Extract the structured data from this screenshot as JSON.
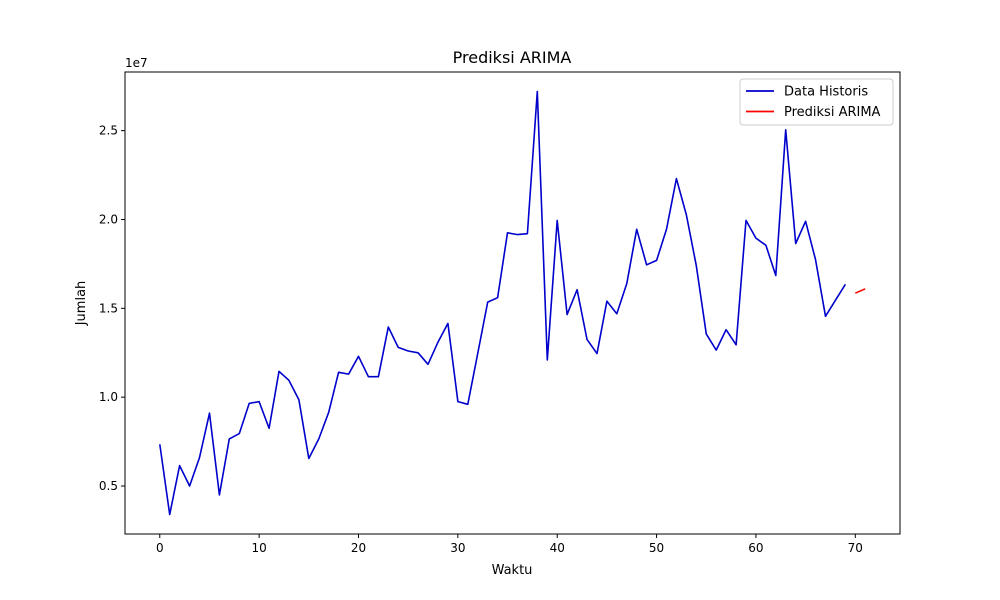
{
  "chart_data": {
    "type": "line",
    "title": "Prediksi ARIMA",
    "xlabel": "Waktu",
    "ylabel": "Jumlah",
    "y_offset_text": "1e7",
    "y_scale": 10000000,
    "xlim": [
      -3.5,
      74.5
    ],
    "ylim": [
      2300000,
      28300000
    ],
    "x_ticks": [
      0,
      10,
      20,
      30,
      40,
      50,
      60,
      70
    ],
    "x_tick_labels": [
      "0",
      "10",
      "20",
      "30",
      "40",
      "50",
      "60",
      "70"
    ],
    "y_ticks": [
      5000000,
      10000000,
      15000000,
      20000000,
      25000000
    ],
    "y_tick_labels": [
      "0.5",
      "1.0",
      "1.5",
      "2.0",
      "2.5"
    ],
    "legend_position": "top-right",
    "series": [
      {
        "name": "Data Historis",
        "color": "#0000cc",
        "x": [
          0,
          1,
          2,
          3,
          4,
          5,
          6,
          7,
          8,
          9,
          10,
          11,
          12,
          13,
          14,
          15,
          16,
          17,
          18,
          19,
          20,
          21,
          22,
          23,
          24,
          25,
          26,
          27,
          28,
          29,
          30,
          31,
          32,
          33,
          34,
          35,
          36,
          37,
          38,
          39,
          40,
          41,
          42,
          43,
          44,
          45,
          46,
          47,
          48,
          49,
          50,
          51,
          52,
          53,
          54,
          55,
          56,
          57,
          58,
          59,
          60,
          61,
          62,
          63,
          64,
          65,
          66,
          67,
          68,
          69
        ],
        "values": [
          7350000,
          3400000,
          6150000,
          5000000,
          6600000,
          9100000,
          4500000,
          7650000,
          7950000,
          9650000,
          9750000,
          8250000,
          11450000,
          10950000,
          9850000,
          6550000,
          7650000,
          9150000,
          11400000,
          11300000,
          12300000,
          11150000,
          11150000,
          13950000,
          12800000,
          12600000,
          12500000,
          11850000,
          13100000,
          14150000,
          9750000,
          9600000,
          12450000,
          15350000,
          15600000,
          19250000,
          19150000,
          19200000,
          27200000,
          12100000,
          19950000,
          14650000,
          16050000,
          13250000,
          12450000,
          15400000,
          14700000,
          16400000,
          19450000,
          17450000,
          17700000,
          19450000,
          22300000,
          20250000,
          17400000,
          13550000,
          12650000,
          13800000,
          12950000,
          19950000,
          18950000,
          18550000,
          16850000,
          25050000,
          18650000,
          19900000,
          17750000,
          14550000,
          15450000,
          16350000
        ]
      },
      {
        "name": "Prediksi ARIMA",
        "color": "#ff0000",
        "x": [
          70,
          71
        ],
        "values": [
          15850000,
          16100000
        ]
      }
    ]
  }
}
